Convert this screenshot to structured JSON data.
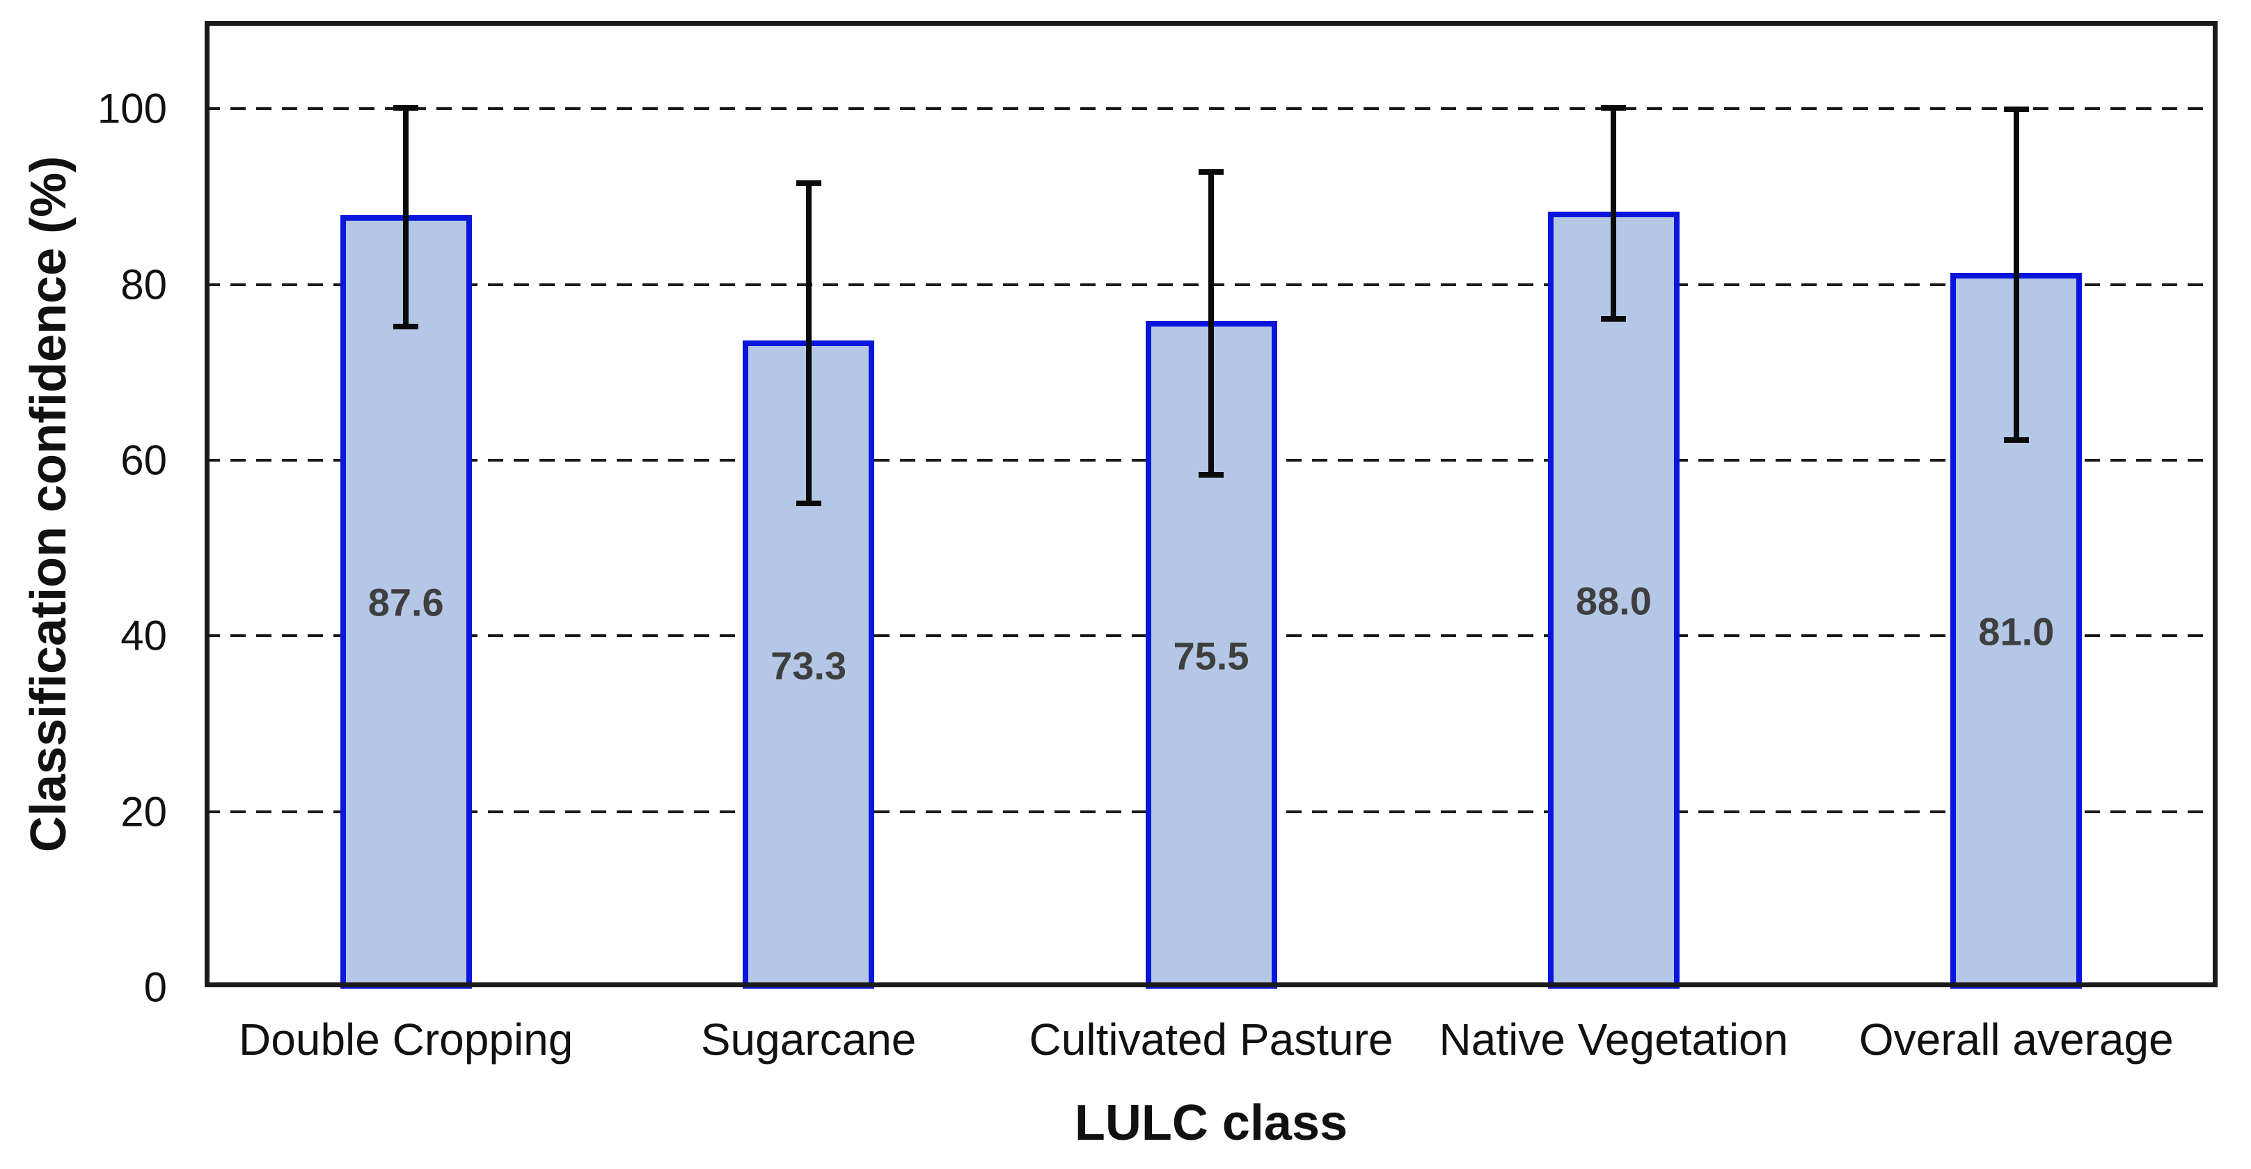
{
  "chart_data": {
    "type": "bar",
    "title": "",
    "xlabel": "LULC class",
    "ylabel": "Classification confidence (%)",
    "categories": [
      "Double Cropping",
      "Sugarcane",
      "Cultivated Pasture",
      "Native Vegetation",
      "Overall average"
    ],
    "values": [
      87.6,
      73.3,
      75.5,
      88.0,
      81.0
    ],
    "value_labels": [
      "87.6",
      "73.3",
      "75.5",
      "88.0",
      "81.0"
    ],
    "error_low": [
      75.2,
      55.1,
      58.3,
      76.1,
      62.3
    ],
    "error_high": [
      100.1,
      91.5,
      92.8,
      100.1,
      99.9
    ],
    "y_ticks": [
      0,
      20,
      40,
      60,
      80,
      100
    ],
    "y_tick_labels": [
      "0",
      "20",
      "40",
      "60",
      "80",
      "100"
    ],
    "ylim": [
      0,
      110
    ],
    "grid": "horizontal dashed lines at 20, 40, 60, 80, 100",
    "legend_position": "none",
    "colors": {
      "bar_fill": "#b4c7e7",
      "bar_border": "#0a16dc",
      "error_bar": "#0a0a0a",
      "gridline": "#1a1a1a",
      "axis_border": "#1a1a1a",
      "tick_text": "#111111",
      "value_label_text": "#3f3f3f"
    }
  }
}
